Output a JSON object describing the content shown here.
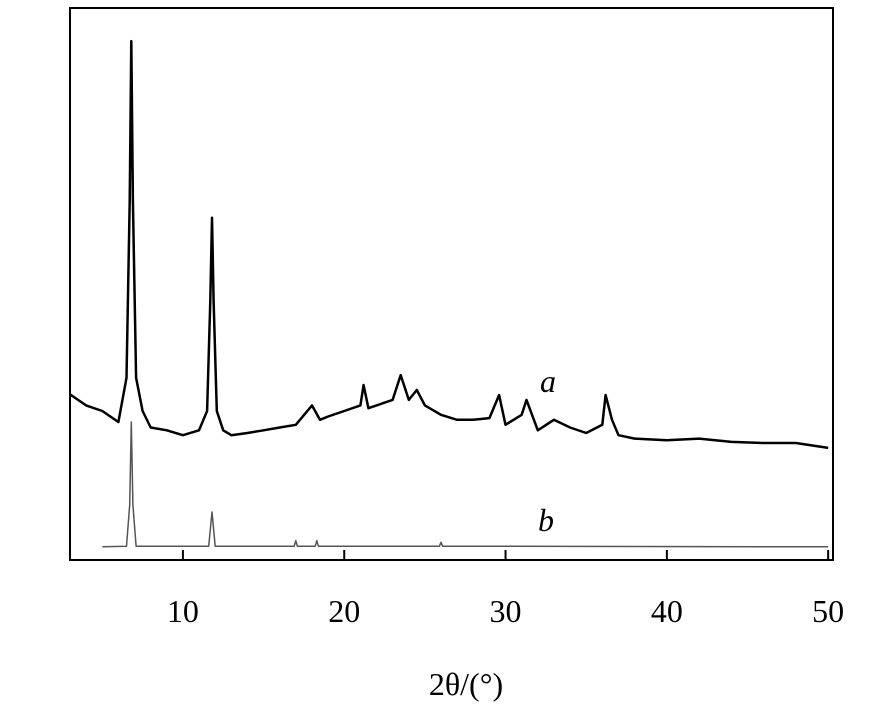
{
  "chart_data": {
    "type": "line",
    "x_label": "2θ/(°)",
    "xlim": [
      3,
      50.3
    ],
    "xticks": [
      10,
      20,
      30,
      40,
      50
    ],
    "ylim": [
      0,
      100
    ],
    "series": [
      {
        "name": "a",
        "color": "#000000",
        "x": [
          3,
          4,
          5,
          6,
          6.5,
          6.7,
          6.8,
          6.9,
          7.1,
          7.5,
          8,
          9,
          10,
          11,
          11.5,
          11.7,
          11.8,
          11.9,
          12.1,
          12.5,
          13,
          14,
          15,
          16,
          17,
          18,
          18.5,
          19,
          20,
          21,
          21.2,
          21.5,
          22,
          23,
          23.5,
          24,
          24.5,
          25,
          26,
          27,
          28,
          29,
          29.6,
          30,
          31,
          31.3,
          32,
          33,
          34,
          35,
          36,
          36.2,
          36.6,
          37,
          38,
          40,
          42,
          44,
          46,
          48,
          50
        ],
        "values": [
          30,
          28,
          27,
          25,
          33,
          65,
          94,
          65,
          33,
          27,
          24,
          23.5,
          22.6,
          23.5,
          27,
          47,
          62,
          47,
          27,
          23.5,
          22.6,
          23,
          23.5,
          24,
          24.5,
          28,
          25.4,
          26,
          27,
          28,
          31.7,
          27.5,
          28,
          29,
          33.5,
          29,
          30.8,
          28,
          26.3,
          25.4,
          25.4,
          25.7,
          29.9,
          24.5,
          26.3,
          29,
          23.5,
          25.4,
          24,
          23,
          24.5,
          29.9,
          25.4,
          22.6,
          22,
          21.7,
          22,
          21.4,
          21.2,
          21.2,
          20.3
        ]
      },
      {
        "name": "b",
        "color": "#555555",
        "x": [
          5,
          6.5,
          6.7,
          6.8,
          6.9,
          7.1,
          11.6,
          11.8,
          12,
          16.9,
          17,
          17.1,
          18.2,
          18.3,
          18.4,
          25.9,
          26,
          26.1,
          50
        ],
        "values": [
          2.4,
          2.5,
          10,
          25,
          10,
          2.5,
          2.5,
          8.7,
          2.5,
          2.5,
          3.5,
          2.5,
          2.5,
          3.5,
          2.5,
          2.5,
          3.2,
          2.5,
          2.4
        ]
      }
    ]
  }
}
